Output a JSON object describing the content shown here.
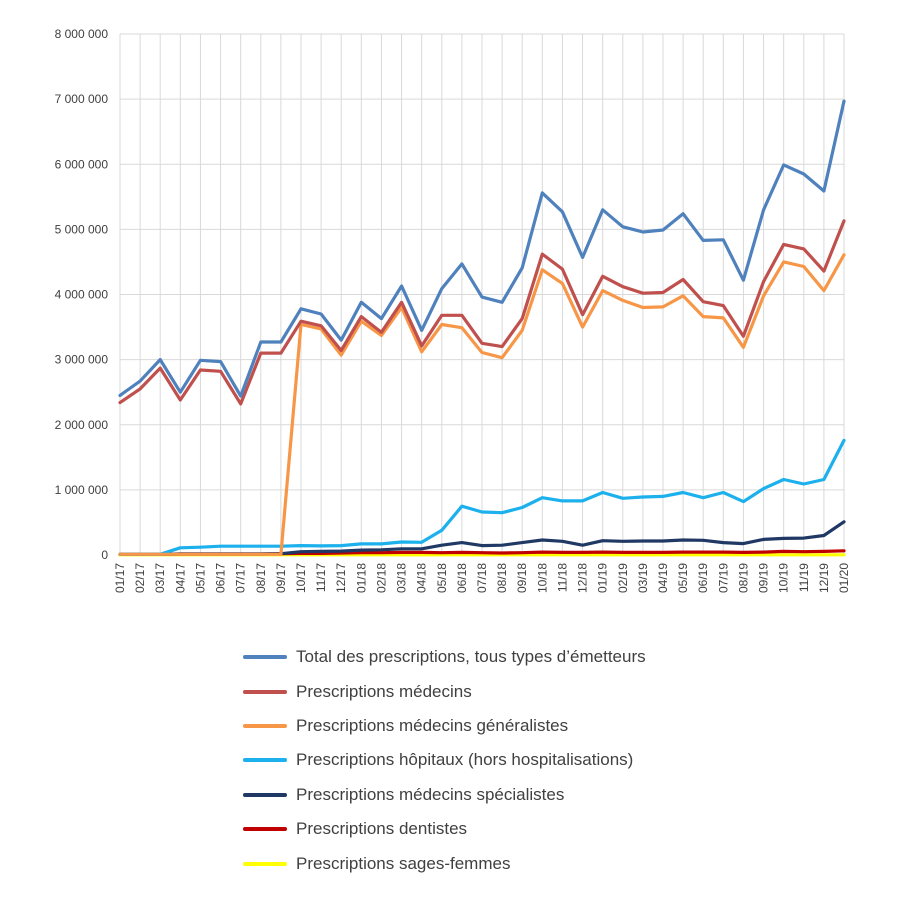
{
  "chart_data": {
    "type": "line",
    "x": [
      "01/17",
      "02/17",
      "03/17",
      "04/17",
      "05/17",
      "06/17",
      "07/17",
      "08/17",
      "09/17",
      "10/17",
      "11/17",
      "12/17",
      "01/18",
      "02/18",
      "03/18",
      "04/18",
      "05/18",
      "06/18",
      "07/18",
      "08/18",
      "09/18",
      "10/18",
      "11/18",
      "12/18",
      "01/19",
      "02/19",
      "03/19",
      "04/19",
      "05/19",
      "06/19",
      "07/19",
      "08/19",
      "09/19",
      "10/19",
      "11/19",
      "12/19",
      "01/20"
    ],
    "ylim": [
      0,
      8000000
    ],
    "yticks": [
      {
        "value": 0,
        "label": "0"
      },
      {
        "value": 1000000,
        "label": "1 000 000"
      },
      {
        "value": 2000000,
        "label": "2 000 000"
      },
      {
        "value": 3000000,
        "label": "3 000 000"
      },
      {
        "value": 4000000,
        "label": "4 000 000"
      },
      {
        "value": 5000000,
        "label": "5 000 000"
      },
      {
        "value": 6000000,
        "label": "6 000 000"
      },
      {
        "value": 7000000,
        "label": "7 000 000"
      },
      {
        "value": 8000000,
        "label": "8 000 000"
      }
    ],
    "grid": true,
    "legend_position": "bottom",
    "series": [
      {
        "name": "Prescriptions sages-femmes",
        "color": "#FFFF00",
        "values": [
          3000,
          3000,
          3000,
          3000,
          3000,
          3000,
          3000,
          3000,
          3000,
          3000,
          3000,
          3000,
          3000,
          3000,
          3000,
          3000,
          3000,
          3000,
          3000,
          3000,
          3000,
          3000,
          3000,
          3000,
          3000,
          3000,
          3000,
          3000,
          3000,
          3000,
          3000,
          3000,
          3000,
          3000,
          3000,
          3000,
          3000
        ]
      },
      {
        "name": "Prescriptions dentistes",
        "color": "#C00000",
        "values": [
          10000,
          10000,
          10000,
          15000,
          15000,
          15000,
          15000,
          15000,
          20000,
          25000,
          25000,
          30000,
          35000,
          35000,
          40000,
          40000,
          35000,
          40000,
          35000,
          30000,
          35000,
          45000,
          40000,
          40000,
          45000,
          40000,
          40000,
          40000,
          45000,
          45000,
          45000,
          40000,
          45000,
          55000,
          50000,
          55000,
          65000
        ]
      },
      {
        "name": "Prescriptions médecins spécialistes",
        "color": "#203864",
        "values": [
          10000,
          10000,
          10000,
          15000,
          15000,
          15000,
          15000,
          15000,
          20000,
          50000,
          55000,
          60000,
          75000,
          80000,
          95000,
          95000,
          150000,
          190000,
          145000,
          150000,
          190000,
          230000,
          210000,
          150000,
          220000,
          210000,
          215000,
          215000,
          230000,
          225000,
          190000,
          175000,
          240000,
          255000,
          260000,
          300000,
          510000
        ]
      },
      {
        "name": "Prescriptions hôpitaux (hors hospitalisations)",
        "color": "#1CB0EC",
        "values": [
          10000,
          10000,
          10000,
          110000,
          120000,
          135000,
          135000,
          135000,
          135000,
          145000,
          140000,
          145000,
          170000,
          170000,
          200000,
          195000,
          380000,
          750000,
          660000,
          650000,
          730000,
          880000,
          830000,
          830000,
          960000,
          870000,
          890000,
          900000,
          960000,
          880000,
          960000,
          820000,
          1020000,
          1160000,
          1090000,
          1160000,
          1760000
        ]
      },
      {
        "name": "Prescriptions médecins généralistes",
        "color": "#F79646",
        "values": [
          10000,
          10000,
          10000,
          10000,
          10000,
          10000,
          10000,
          10000,
          10000,
          3540000,
          3470000,
          3070000,
          3590000,
          3370000,
          3800000,
          3120000,
          3540000,
          3490000,
          3110000,
          3030000,
          3450000,
          4380000,
          4170000,
          3500000,
          4060000,
          3910000,
          3800000,
          3810000,
          3980000,
          3660000,
          3640000,
          3190000,
          3980000,
          4500000,
          4430000,
          4060000,
          4610000
        ]
      },
      {
        "name": "Prescriptions médecins",
        "color": "#C0504D",
        "values": [
          2340000,
          2550000,
          2870000,
          2380000,
          2840000,
          2820000,
          2320000,
          3100000,
          3100000,
          3590000,
          3520000,
          3140000,
          3660000,
          3420000,
          3880000,
          3210000,
          3680000,
          3680000,
          3250000,
          3200000,
          3630000,
          4620000,
          4390000,
          3690000,
          4280000,
          4120000,
          4020000,
          4030000,
          4230000,
          3890000,
          3830000,
          3360000,
          4200000,
          4770000,
          4700000,
          4360000,
          5130000
        ]
      },
      {
        "name": "Total des prescriptions, tous types d’émetteurs",
        "color": "#4F81BD",
        "values": [
          2450000,
          2670000,
          3000000,
          2500000,
          2990000,
          2970000,
          2440000,
          3270000,
          3270000,
          3780000,
          3700000,
          3300000,
          3880000,
          3630000,
          4130000,
          3450000,
          4090000,
          4470000,
          3960000,
          3880000,
          4410000,
          5560000,
          5270000,
          4570000,
          5300000,
          5040000,
          4960000,
          4990000,
          5240000,
          4830000,
          4840000,
          4220000,
          5300000,
          5990000,
          5850000,
          5590000,
          6970000
        ]
      }
    ],
    "legend_order": [
      "Total des prescriptions, tous types d’émetteurs",
      "Prescriptions médecins",
      "Prescriptions médecins généralistes",
      "Prescriptions hôpitaux (hors hospitalisations)",
      "Prescriptions médecins spécialistes",
      "Prescriptions dentistes",
      "Prescriptions sages-femmes"
    ]
  }
}
